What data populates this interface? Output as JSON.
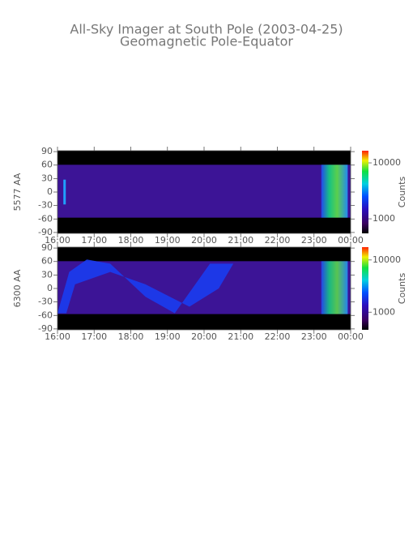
{
  "title": "All-Sky Imager at South Pole (2003-04-25)",
  "subtitle": "Geomagnetic Pole-Equator",
  "chart_data": [
    {
      "type": "heatmap",
      "y_label": "5577 AA",
      "xlim": [
        16,
        24
      ],
      "xticks": [
        {
          "value": 16,
          "label": "16:00"
        },
        {
          "value": 17,
          "label": "17:00"
        },
        {
          "value": 18,
          "label": "18:00"
        },
        {
          "value": 19,
          "label": "19:00"
        },
        {
          "value": 20,
          "label": "20:00"
        },
        {
          "value": 21,
          "label": "21:00"
        },
        {
          "value": 22,
          "label": "22:00"
        },
        {
          "value": 23,
          "label": "23:00"
        },
        {
          "value": 24,
          "label": "00:00"
        }
      ],
      "ylim": [
        -92,
        92
      ],
      "yticks": [
        -90,
        -60,
        -30,
        0,
        30,
        60,
        90
      ],
      "colorbar": {
        "label": "Counts",
        "log": true,
        "lim": [
          550,
          16500
        ],
        "ticks": [
          1000,
          10000
        ]
      }
    },
    {
      "type": "heatmap",
      "y_label": "6300 AA",
      "xlim": [
        16,
        24
      ],
      "xticks": [
        {
          "value": 16,
          "label": "16:00"
        },
        {
          "value": 17,
          "label": "17:00"
        },
        {
          "value": 18,
          "label": "18:00"
        },
        {
          "value": 19,
          "label": "19:00"
        },
        {
          "value": 20,
          "label": "20:00"
        },
        {
          "value": 21,
          "label": "21:00"
        },
        {
          "value": 22,
          "label": "22:00"
        },
        {
          "value": 23,
          "label": "23:00"
        },
        {
          "value": 24,
          "label": "00:00"
        }
      ],
      "ylim": [
        -92,
        92
      ],
      "yticks": [
        -90,
        -60,
        -30,
        0,
        30,
        60,
        90
      ],
      "colorbar": {
        "label": "Counts",
        "log": true,
        "lim": [
          460,
          17600
        ],
        "ticks": [
          1000,
          10000
        ]
      }
    }
  ]
}
